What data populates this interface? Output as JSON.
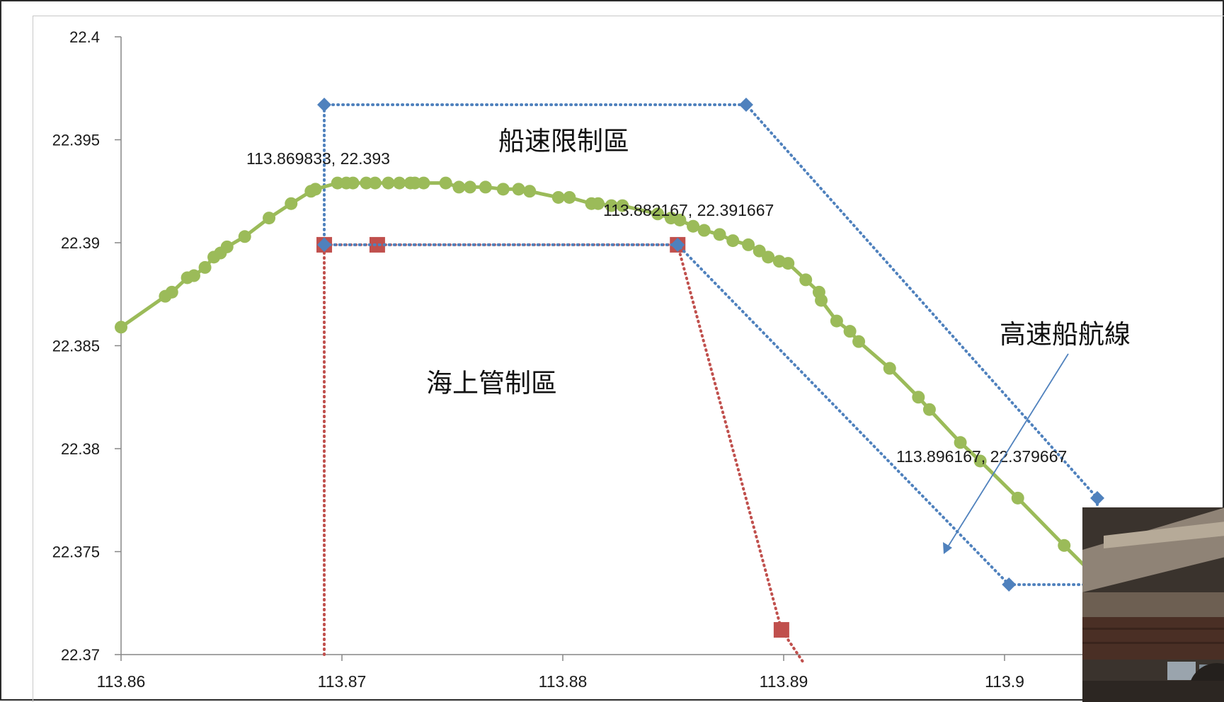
{
  "chart_data": {
    "type": "scatter",
    "xlim": [
      113.86,
      113.91
    ],
    "ylim": [
      22.37,
      22.4
    ],
    "x_ticks": [
      "113.86",
      "113.87",
      "113.88",
      "113.89",
      "113.9"
    ],
    "y_ticks": [
      "22.4",
      "22.395",
      "22.39",
      "22.385",
      "22.38",
      "22.375",
      "22.37"
    ],
    "grid": false,
    "legend": "none",
    "series": [
      {
        "style": "solid-line-circles",
        "color": "#9BBB59",
        "points": [
          [
            113.86,
            22.3859
          ],
          [
            113.862,
            22.3874
          ],
          [
            113.8623,
            22.3876
          ],
          [
            113.863,
            22.3883
          ],
          [
            113.8633,
            22.3884
          ],
          [
            113.8638,
            22.3888
          ],
          [
            113.8642,
            22.3893
          ],
          [
            113.8645,
            22.3895
          ],
          [
            113.8648,
            22.3898
          ],
          [
            113.8656,
            22.3903
          ],
          [
            113.8667,
            22.3912
          ],
          [
            113.8677,
            22.3919
          ],
          [
            113.8686,
            22.3925
          ],
          [
            113.8688,
            22.3926
          ],
          [
            113.8698,
            22.3929
          ],
          [
            113.8702,
            22.3929
          ],
          [
            113.8705,
            22.3929
          ],
          [
            113.8711,
            22.3929
          ],
          [
            113.8715,
            22.3929
          ],
          [
            113.8721,
            22.3929
          ],
          [
            113.8726,
            22.3929
          ],
          [
            113.8731,
            22.3929
          ],
          [
            113.8733,
            22.3929
          ],
          [
            113.8737,
            22.3929
          ],
          [
            113.8747,
            22.3929
          ],
          [
            113.8753,
            22.3927
          ],
          [
            113.8758,
            22.3927
          ],
          [
            113.8765,
            22.3927
          ],
          [
            113.8773,
            22.3926
          ],
          [
            113.878,
            22.3926
          ],
          [
            113.8785,
            22.3925
          ],
          [
            113.8798,
            22.3922
          ],
          [
            113.8803,
            22.3922
          ],
          [
            113.8813,
            22.3919
          ],
          [
            113.8816,
            22.3919
          ],
          [
            113.8822,
            22.3918
          ],
          [
            113.8827,
            22.3918
          ],
          [
            113.8843,
            22.3914
          ],
          [
            113.8849,
            22.3912
          ],
          [
            113.8853,
            22.3911
          ],
          [
            113.8859,
            22.3908
          ],
          [
            113.8864,
            22.3906
          ],
          [
            113.8871,
            22.3904
          ],
          [
            113.8877,
            22.3901
          ],
          [
            113.8884,
            22.3899
          ],
          [
            113.8889,
            22.3896
          ],
          [
            113.8893,
            22.3893
          ],
          [
            113.8898,
            22.3891
          ],
          [
            113.8902,
            22.389
          ],
          [
            113.891,
            22.3882
          ],
          [
            113.8916,
            22.3876
          ],
          [
            113.8917,
            22.3872
          ],
          [
            113.8924,
            22.3862
          ],
          [
            113.893,
            22.3857
          ],
          [
            113.8934,
            22.3852
          ],
          [
            113.8948,
            22.3839
          ],
          [
            113.8961,
            22.3825
          ],
          [
            113.8966,
            22.3819
          ],
          [
            113.898,
            22.3803
          ],
          [
            113.8989,
            22.3794
          ],
          [
            113.9006,
            22.3776
          ],
          [
            113.9027,
            22.3753
          ],
          [
            113.9042,
            22.3737
          ],
          [
            113.9075,
            22.3707
          ],
          [
            113.909,
            22.369
          ]
        ]
      },
      {
        "style": "dotted-line-diamonds",
        "color": "#4F81BD",
        "points": [
          [
            113.8692,
            22.3899
          ],
          [
            113.8692,
            22.3967
          ],
          [
            113.8883,
            22.3967
          ],
          [
            113.9042,
            22.3776
          ],
          [
            113.9042,
            22.3734
          ],
          [
            113.9002,
            22.3734
          ],
          [
            113.8852,
            22.3899
          ],
          [
            113.8692,
            22.3899
          ]
        ]
      },
      {
        "style": "dotted-line-squares",
        "color": "#C0504D",
        "points": [
          [
            113.8692,
            22.37
          ],
          [
            113.8692,
            22.3899
          ],
          [
            113.8716,
            22.3899
          ],
          [
            113.8852,
            22.3899
          ],
          [
            113.8899,
            22.3712
          ],
          [
            113.8909,
            22.3696
          ]
        ]
      }
    ],
    "labels": {
      "zone_speed": "船速限制區",
      "zone_marine": "海上管制區",
      "route": "高速船航線",
      "point_a": "113.869833, 22.393",
      "point_b": "113.882167, 22.391667",
      "point_c": "113.896167, 22.379667"
    }
  }
}
